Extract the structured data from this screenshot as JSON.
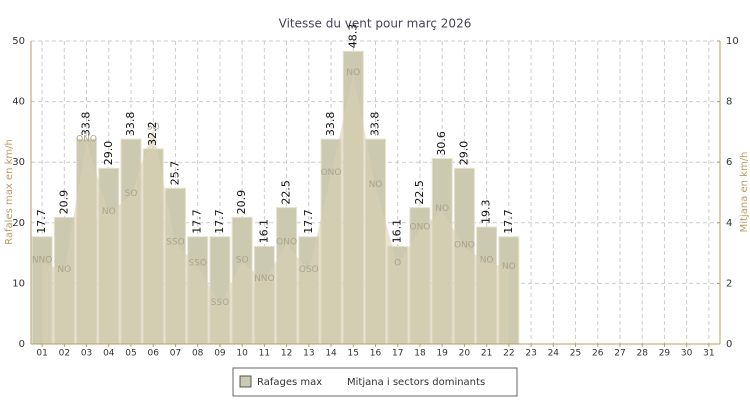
{
  "chart_data": {
    "type": "bar",
    "title": "Vitesse du vent pour març 2026",
    "y_label": "Rafales max en km/h",
    "y2_label": "Mitjana en km/h",
    "categories": [
      "01",
      "02",
      "03",
      "04",
      "05",
      "06",
      "07",
      "08",
      "09",
      "10",
      "11",
      "12",
      "13",
      "14",
      "15",
      "16",
      "17",
      "18",
      "19",
      "20",
      "21",
      "22",
      "23",
      "24",
      "25",
      "26",
      "27",
      "28",
      "29",
      "30",
      "31"
    ],
    "ylim": [
      0,
      50
    ],
    "yticks": [
      0,
      10,
      20,
      30,
      40,
      50
    ],
    "y2lim": [
      0,
      10
    ],
    "y2ticks": [
      0,
      2,
      4,
      6,
      8,
      10
    ],
    "grid": true,
    "series": [
      {
        "name": "Rafages max",
        "color": "#cbc9b0",
        "values": [
          17.7,
          20.9,
          33.8,
          29.0,
          33.8,
          32.2,
          25.7,
          17.7,
          17.7,
          20.9,
          16.1,
          22.5,
          17.7,
          33.8,
          48.3,
          33.8,
          16.1,
          22.5,
          30.6,
          29.0,
          19.3,
          17.7,
          null,
          null,
          null,
          null,
          null,
          null,
          null,
          null,
          null
        ],
        "value_labels": [
          "17.7",
          "20.9",
          "33.8",
          "29.0",
          "33.8",
          "32.2",
          "25.7",
          "17.7",
          "17.7",
          "20.9",
          "16.1",
          "22.5",
          "17.7",
          "33.8",
          "48.3",
          "33.8",
          "16.1",
          "22.5",
          "30.6",
          "29.0",
          "19.3",
          "17.7",
          null,
          null,
          null,
          null,
          null,
          null,
          null,
          null,
          null
        ]
      },
      {
        "name": "Mitjana i sectors dominants",
        "color": "#d9d0b4",
        "axis": "y2",
        "values": [
          2.7,
          2.4,
          6.7,
          4.3,
          4.9,
          7.1,
          3.3,
          2.6,
          1.3,
          2.7,
          2.1,
          3.3,
          2.4,
          5.6,
          8.9,
          5.2,
          2.6,
          3.8,
          4.4,
          3.2,
          2.7,
          2.5,
          null,
          null,
          null,
          null,
          null,
          null,
          null,
          null,
          null
        ],
        "sectors": [
          "NNO",
          "NO",
          "ONO",
          "NO",
          "SO",
          "SO",
          "SSO",
          "SSO",
          "SSO",
          "SO",
          "NNO",
          "ONO",
          "OSO",
          "ONO",
          "NO",
          "NO",
          "O",
          "ONO",
          "NO",
          "ONO",
          "NO",
          "NO",
          null,
          null,
          null,
          null,
          null,
          null,
          null,
          null,
          null
        ]
      }
    ]
  }
}
